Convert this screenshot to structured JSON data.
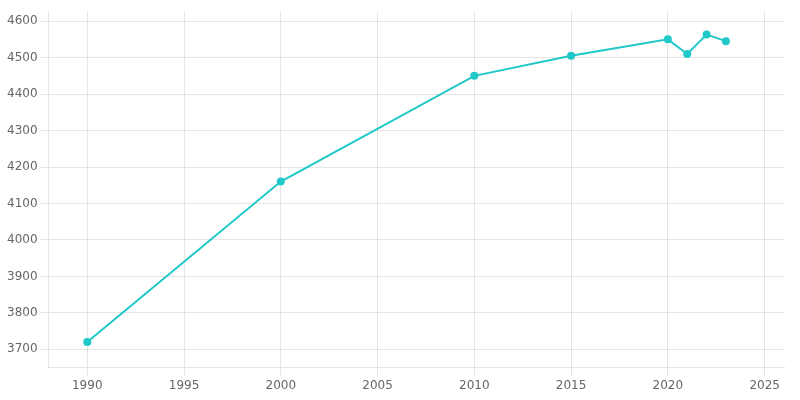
{
  "chart_data": {
    "type": "line",
    "x": [
      1990,
      2000,
      2010,
      2015,
      2020,
      2021,
      2022,
      2023
    ],
    "values": [
      3720,
      4160,
      4450,
      4505,
      4550,
      4510,
      4563,
      4545
    ],
    "color": "#20C8C8",
    "marker": "circle",
    "xlim": [
      1988,
      2026
    ],
    "ylim": [
      3650,
      4625
    ],
    "xticks": [
      1990,
      1995,
      2000,
      2005,
      2010,
      2015,
      2020,
      2025
    ],
    "yticks": [
      3700,
      3800,
      3900,
      4000,
      4100,
      4200,
      4300,
      4400,
      4500,
      4600
    ],
    "grid": true
  }
}
